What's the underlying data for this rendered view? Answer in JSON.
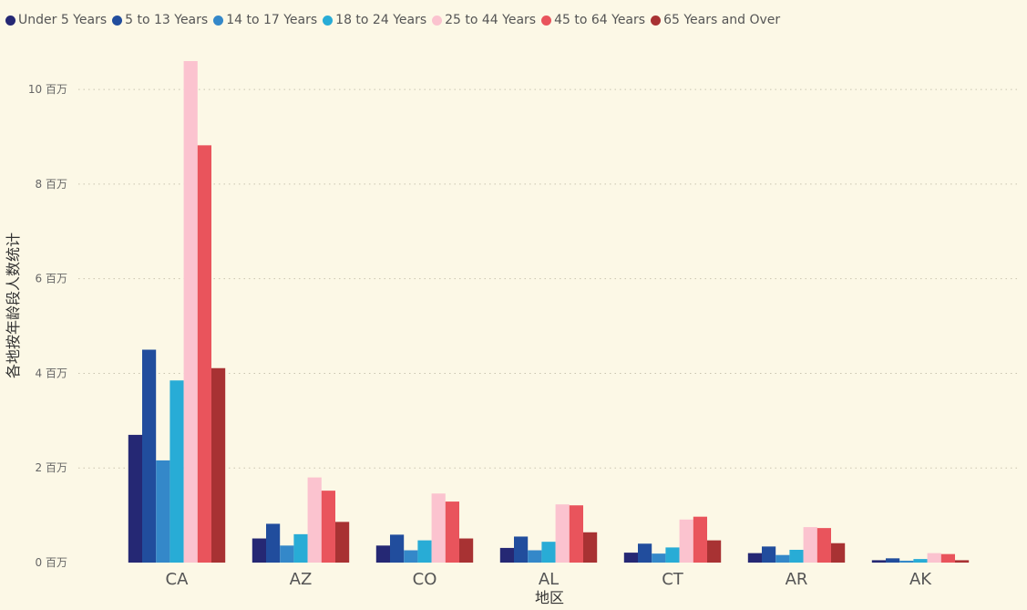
{
  "chart_data": {
    "type": "bar",
    "title": "",
    "xlabel": "地区",
    "ylabel": "各地按年龄段人数统计",
    "categories": [
      "CA",
      "AZ",
      "CO",
      "AL",
      "CT",
      "AR",
      "AK"
    ],
    "ylim": [
      0,
      10600000
    ],
    "yticks": [
      {
        "value": 0,
        "label": "0 百万"
      },
      {
        "value": 2000000,
        "label": "2 百万"
      },
      {
        "value": 4000000,
        "label": "4 百万"
      },
      {
        "value": 6000000,
        "label": "6 百万"
      },
      {
        "value": 8000000,
        "label": "8 百万"
      },
      {
        "value": 10000000,
        "label": "10 百万"
      }
    ],
    "grid": true,
    "legend_position": "top-left",
    "series": [
      {
        "name": "Under 5 Years",
        "color": "#252874",
        "values": [
          2700000,
          510000,
          360000,
          310000,
          210000,
          200000,
          50000
        ]
      },
      {
        "name": "5 to 13 Years",
        "color": "#214d9d",
        "values": [
          4500000,
          820000,
          590000,
          550000,
          400000,
          340000,
          90000
        ]
      },
      {
        "name": "14 to 17 Years",
        "color": "#3488c9",
        "values": [
          2160000,
          360000,
          260000,
          260000,
          190000,
          160000,
          40000
        ]
      },
      {
        "name": "18 to 24 Years",
        "color": "#28acd6",
        "values": [
          3850000,
          600000,
          470000,
          440000,
          320000,
          270000,
          75000
        ]
      },
      {
        "name": "25 to 44 Years",
        "color": "#fbc3cf",
        "values": [
          10600000,
          1800000,
          1460000,
          1230000,
          910000,
          750000,
          200000
        ]
      },
      {
        "name": "45 to 64 Years",
        "color": "#e9545c",
        "values": [
          8820000,
          1520000,
          1290000,
          1210000,
          970000,
          730000,
          180000
        ]
      },
      {
        "name": "65 Years and Over",
        "color": "#a83233",
        "values": [
          4110000,
          860000,
          510000,
          640000,
          470000,
          410000,
          50000
        ]
      }
    ]
  }
}
